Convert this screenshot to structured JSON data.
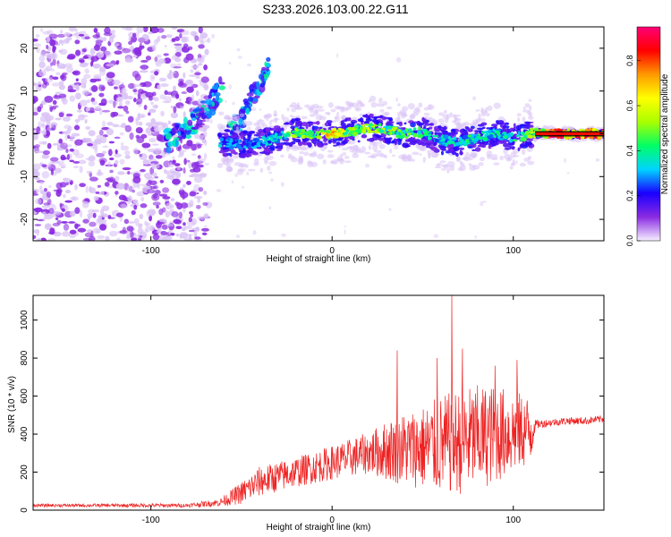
{
  "figure": {
    "title": "S233.2026.103.00.22.G11"
  },
  "colors": {
    "axes": "#000000",
    "snr_line": "#ee2222",
    "spectrum_dense": "#8a2be2",
    "spectrum_light": "#d9c2f5"
  },
  "colormap": [
    "#f6f0ff",
    "#8a2be2",
    "#1a00ff",
    "#00d4ff",
    "#00ff66",
    "#aaff00",
    "#ffff00",
    "#ff9900",
    "#ff0000",
    "#ff0077"
  ],
  "chart_data": [
    {
      "type": "heatmap",
      "name_hint": "spectrogram",
      "xlabel": "Height of straight line (km)",
      "ylabel": "Frequency (Hz)",
      "xlim": [
        -165,
        150
      ],
      "ylim": [
        -25,
        25
      ],
      "xticks": [
        -100,
        0,
        100
      ],
      "yticks": [
        -20,
        -10,
        0,
        10,
        20
      ],
      "colorbar": {
        "label": "Normalized spectral amplitude",
        "range": [
          0,
          0.95
        ],
        "ticks": [
          "0.0",
          "0.2",
          "0.4",
          "0.6",
          "0.8"
        ]
      },
      "noise_region_x": [
        -165,
        -72
      ],
      "branches": [
        {
          "x": [
            -92,
            -78,
            -66,
            -60
          ],
          "y": [
            -2,
            2,
            7,
            12
          ]
        },
        {
          "x": [
            -58,
            -48,
            -40,
            -35
          ],
          "y": [
            -1,
            5,
            12,
            16
          ]
        }
      ],
      "signal_track": {
        "x": [
          -62,
          -50,
          -40,
          -30,
          -20,
          -10,
          0,
          10,
          20,
          30,
          40,
          50,
          60,
          70,
          80,
          90,
          100,
          110,
          120,
          130,
          150
        ],
        "y": [
          -2,
          -2.5,
          -2,
          -1,
          0.5,
          -0.5,
          0,
          0.5,
          1.5,
          1,
          0,
          0.5,
          -1.5,
          -2,
          -1,
          0,
          -1,
          0,
          0.2,
          0,
          0
        ],
        "amplitude": [
          0.35,
          0.3,
          0.35,
          0.4,
          0.55,
          0.5,
          0.8,
          0.55,
          0.6,
          0.55,
          0.5,
          0.45,
          0.4,
          0.4,
          0.45,
          0.4,
          0.45,
          0.55,
          0.9,
          0.9,
          0.9
        ]
      }
    },
    {
      "type": "line",
      "name_hint": "snr",
      "xlabel": "Height of straight line (km)",
      "ylabel": "SNR (10 * v/v)",
      "xlim": [
        -165,
        150
      ],
      "ylim": [
        0,
        1130
      ],
      "xticks": [
        -100,
        0,
        100
      ],
      "yticks": [
        0,
        200,
        400,
        600,
        800,
        1000
      ],
      "envelope": {
        "x": [
          -165,
          -80,
          -62,
          -50,
          -40,
          -20,
          0,
          20,
          35,
          50,
          60,
          70,
          80,
          90,
          100,
          110,
          112,
          120,
          130,
          140,
          150
        ],
        "base": [
          25,
          25,
          40,
          90,
          150,
          200,
          250,
          300,
          320,
          330,
          340,
          360,
          380,
          400,
          410,
          420,
          450,
          460,
          470,
          470,
          480
        ],
        "spread": [
          8,
          10,
          20,
          60,
          80,
          80,
          90,
          110,
          180,
          220,
          260,
          280,
          280,
          260,
          220,
          180,
          25,
          20,
          20,
          20,
          20
        ]
      },
      "peaks": [
        {
          "x": 66,
          "y": 1130
        },
        {
          "x": 36,
          "y": 840
        },
        {
          "x": 72,
          "y": 850
        },
        {
          "x": 58,
          "y": 800
        },
        {
          "x": 102,
          "y": 790
        },
        {
          "x": 90,
          "y": 760
        }
      ]
    }
  ]
}
